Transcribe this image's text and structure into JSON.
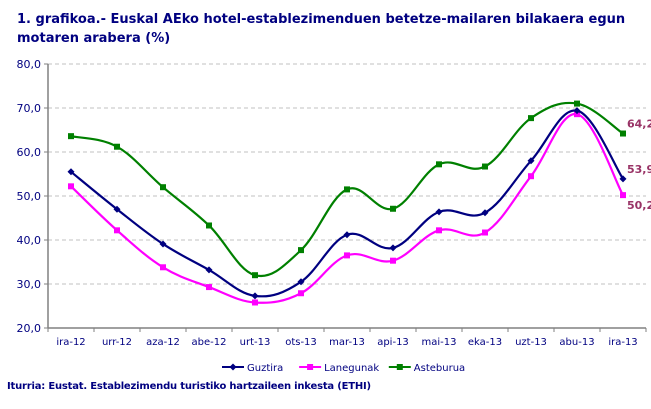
{
  "title": "1. grafikoa.- Euskal AEko hotel-establezimenduen betetze-mailaren bilakaera egun motaren arabera (%)",
  "source": "Iturria: Eustat. Establezimendu turistiko hartzaileen inkesta (ETHI)",
  "colors": {
    "guztira": "#000080",
    "lanegunak": "#ff00ff",
    "asteburua": "#008000",
    "labels": "#993366",
    "grid": "#c0c0c0",
    "axis": "#808080",
    "text": "#000080"
  },
  "chart_data": {
    "type": "line",
    "title": "1. grafikoa.- Euskal AEko hotel-establezimenduen betetze-mailaren bilakaera egun motaren arabera (%)",
    "xlabel": "",
    "ylabel": "",
    "ylim": [
      20,
      80
    ],
    "yticks": [
      "20,0",
      "30,0",
      "40,0",
      "50,0",
      "60,0",
      "70,0",
      "80,0"
    ],
    "grid": true,
    "legend_position": "bottom",
    "categories": [
      "ira-12",
      "urr-12",
      "aza-12",
      "abe-12",
      "urt-13",
      "ots-13",
      "mar-13",
      "api-13",
      "mai-13",
      "eka-13",
      "uzt-13",
      "abu-13",
      "ira-13"
    ],
    "series": [
      {
        "name": "Guztira",
        "color": "#000080",
        "marker": "diamond",
        "values": [
          55.5,
          47.0,
          39.1,
          33.2,
          27.3,
          30.5,
          41.2,
          38.2,
          46.4,
          46.2,
          58.0,
          69.4,
          53.9
        ]
      },
      {
        "name": "Lanegunak",
        "color": "#ff00ff",
        "marker": "square",
        "values": [
          52.2,
          42.2,
          33.8,
          29.3,
          25.8,
          27.9,
          36.5,
          35.3,
          42.2,
          41.7,
          54.5,
          68.6,
          50.2
        ]
      },
      {
        "name": "Asteburua",
        "color": "#008000",
        "marker": "square",
        "values": [
          63.6,
          61.2,
          52.0,
          43.3,
          32.0,
          37.7,
          51.5,
          47.1,
          57.2,
          56.7,
          67.7,
          71.0,
          64.2
        ]
      }
    ],
    "annotations": [
      {
        "series": "Asteburua",
        "category": "ira-13",
        "text": "64,2"
      },
      {
        "series": "Guztira",
        "category": "ira-13",
        "text": "53,9"
      },
      {
        "series": "Lanegunak",
        "category": "ira-13",
        "text": "50,2"
      }
    ]
  }
}
